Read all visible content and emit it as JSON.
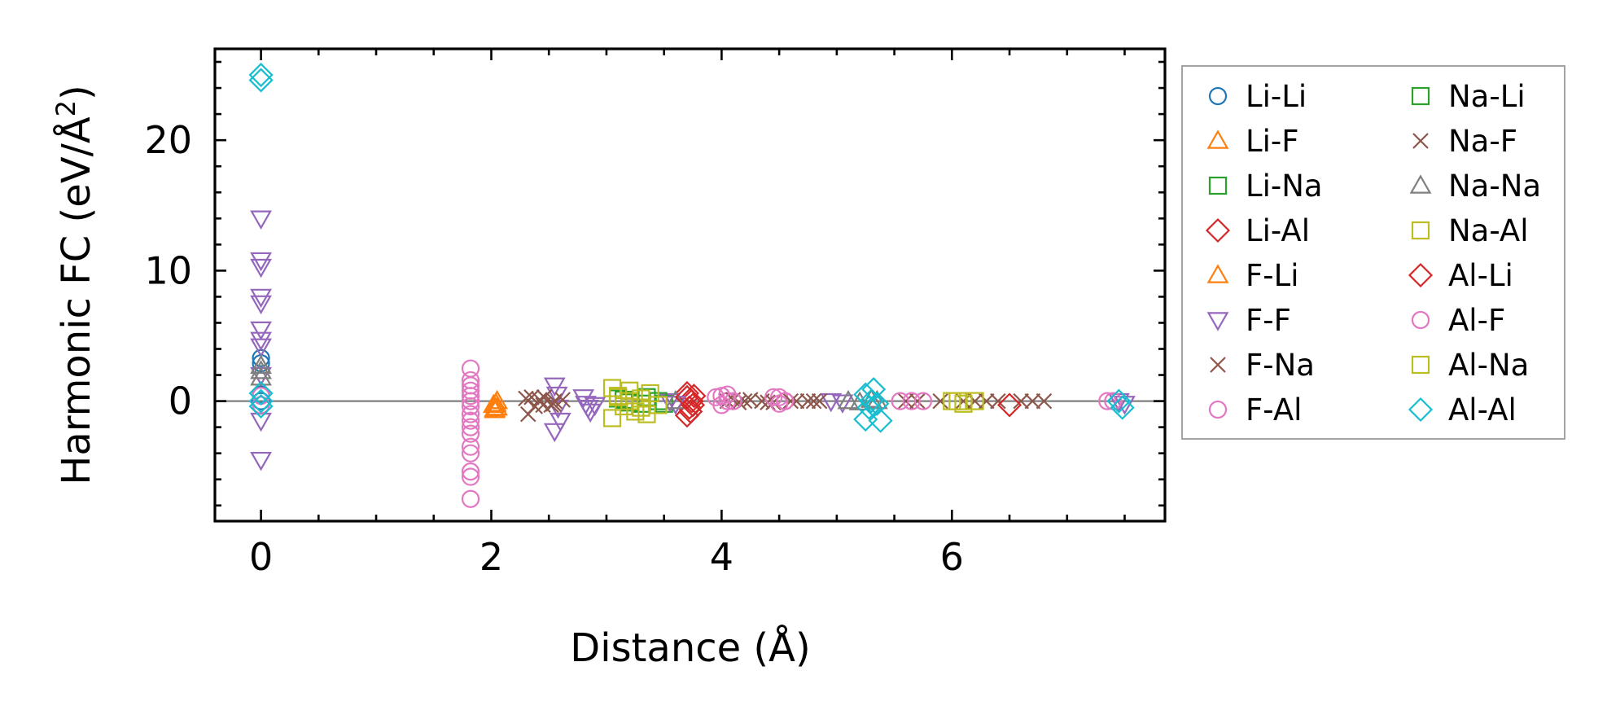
{
  "chart_data": {
    "type": "scatter",
    "title": "",
    "xlabel": "Distance (Å)",
    "ylabel": "Harmonic FC (eV/Å²)",
    "xlim": [
      -0.4,
      7.85
    ],
    "ylim": [
      -9.2,
      27
    ],
    "x_ticks": [
      0,
      2,
      4,
      6
    ],
    "x_tick_labels": [
      "0",
      "2",
      "4",
      "6"
    ],
    "y_ticks": [
      0,
      10,
      20
    ],
    "y_tick_labels": [
      "0",
      "10",
      "20"
    ],
    "grid": false,
    "zero_line": true,
    "legend_position": "outside-right",
    "series": [
      {
        "name": "Li-Li",
        "marker": "circle",
        "color": "#1f77b4",
        "x": [
          0,
          0,
          0,
          0
        ],
        "y": [
          3.3,
          2.9,
          0.5,
          0.0
        ]
      },
      {
        "name": "Li-F",
        "marker": "triangle-up",
        "color": "#ff7f0e",
        "x": [
          2.02,
          2.03,
          2.04,
          2.05
        ],
        "y": [
          -0.3,
          -0.6,
          -0.2,
          -0.5
        ]
      },
      {
        "name": "Li-Na",
        "marker": "square",
        "color": "#2ca02c",
        "x": [
          3.1,
          3.2,
          3.35,
          3.5
        ],
        "y": [
          0.2,
          -0.1,
          0.3,
          -0.2
        ]
      },
      {
        "name": "Li-Al",
        "marker": "diamond",
        "color": "#d62728",
        "x": [
          3.7,
          3.72,
          3.74,
          3.76,
          3.7,
          3.73
        ],
        "y": [
          -1.1,
          -0.5,
          0.0,
          0.4,
          0.6,
          -0.8
        ]
      },
      {
        "name": "F-Li",
        "marker": "triangle-up",
        "color": "#ff7f0e",
        "x": [
          2.03,
          2.05
        ],
        "y": [
          -0.7,
          0.0
        ]
      },
      {
        "name": "F-F",
        "marker": "triangle-down",
        "color": "#9467bd",
        "x": [
          0,
          0,
          0,
          0,
          0,
          0,
          0,
          0,
          0,
          0,
          0,
          2.55,
          2.57,
          2.58,
          2.6,
          2.55,
          2.8,
          2.82,
          2.84,
          2.86,
          2.9,
          3.55,
          3.6,
          4.95,
          5.05,
          7.45,
          7.5
        ],
        "y": [
          14.0,
          10.8,
          10.3,
          8.0,
          7.5,
          5.5,
          4.7,
          4.2,
          2.0,
          -1.5,
          -4.5,
          1.2,
          0.5,
          -0.5,
          -1.5,
          -2.3,
          0.3,
          -0.2,
          -0.5,
          -0.8,
          -0.3,
          0.0,
          -0.2,
          0.0,
          -0.1,
          0.0,
          -0.2
        ]
      },
      {
        "name": "F-Na",
        "marker": "x",
        "color": "#8c564b",
        "x": [
          2.3,
          2.38,
          2.46,
          2.54,
          2.62,
          2.32,
          2.42,
          2.52,
          4.05,
          4.15,
          4.25,
          4.35,
          4.45,
          4.65,
          4.75,
          4.85,
          5.6,
          5.7,
          6.1,
          6.2,
          6.4,
          6.6,
          6.8
        ],
        "y": [
          0.2,
          -0.4,
          0.3,
          -0.2,
          0.1,
          -1.0,
          0.1,
          -0.3,
          0.0,
          -0.1,
          0.1,
          0.0,
          -0.1,
          0.0,
          0.0,
          0.0,
          0.0,
          0.0,
          0.0,
          0.0,
          0.0,
          0.0,
          0.0
        ]
      },
      {
        "name": "F-Al",
        "marker": "circle",
        "color": "#e377c2",
        "x": [
          1.82,
          1.82,
          1.82,
          1.82,
          1.82,
          1.82,
          1.82,
          1.82,
          1.82,
          1.82,
          1.82,
          1.82,
          1.82,
          1.82,
          4.0,
          4.05,
          4.5,
          4.55
        ],
        "y": [
          2.5,
          1.6,
          0.8,
          0.4,
          0.0,
          -0.4,
          -1.0,
          -2.0,
          -2.5,
          -3.5,
          -4.0,
          -5.4,
          -5.8,
          -7.5,
          0.4,
          0.0,
          0.3,
          0.0
        ]
      },
      {
        "name": "Na-Li",
        "marker": "square",
        "color": "#2ca02c",
        "x": [
          3.15,
          3.3,
          3.45
        ],
        "y": [
          0.1,
          -0.2,
          0.0
        ]
      },
      {
        "name": "Na-F",
        "marker": "x",
        "color": "#8c564b",
        "x": [
          2.35,
          2.45,
          2.55,
          4.1,
          4.2,
          4.4,
          4.6,
          4.8,
          5.9,
          6.3,
          6.7
        ],
        "y": [
          0.3,
          -0.3,
          0.0,
          0.1,
          0.0,
          -0.1,
          0.0,
          0.0,
          0.0,
          0.0,
          0.0
        ]
      },
      {
        "name": "Na-Na",
        "marker": "triangle-up",
        "color": "#7f7f7f",
        "x": [
          0,
          0,
          0,
          3.6,
          5.1,
          5.2,
          5.3,
          5.35
        ],
        "y": [
          2.7,
          2.3,
          1.8,
          0.0,
          0.0,
          -0.1,
          0.1,
          0.0
        ]
      },
      {
        "name": "Na-Al",
        "marker": "square",
        "color": "#bcbd22",
        "x": [
          3.05,
          3.1,
          3.15,
          3.2,
          3.25,
          3.3,
          3.38,
          3.45,
          3.05,
          3.2,
          3.35,
          6.0,
          6.1,
          6.2
        ],
        "y": [
          1.0,
          0.4,
          -0.4,
          0.8,
          -0.8,
          0.2,
          0.6,
          -0.3,
          -1.3,
          0.0,
          -1.0,
          0.0,
          -0.2,
          0.0
        ]
      },
      {
        "name": "Al-Li",
        "marker": "diamond",
        "color": "#d62728",
        "x": [
          3.7,
          3.75,
          6.5
        ],
        "y": [
          0.3,
          -0.3,
          -0.3
        ]
      },
      {
        "name": "Al-F",
        "marker": "circle",
        "color": "#e377c2",
        "x": [
          0,
          0,
          1.82,
          1.82,
          3.95,
          4.0,
          4.05,
          4.1,
          4.45,
          4.5,
          4.55,
          5.55,
          5.65,
          5.75,
          7.35,
          7.4
        ],
        "y": [
          0.4,
          -0.3,
          1.2,
          -1.5,
          0.3,
          -0.3,
          0.5,
          0.0,
          0.3,
          -0.2,
          0.0,
          0.0,
          0.0,
          0.0,
          0.0,
          0.0
        ]
      },
      {
        "name": "Al-Na",
        "marker": "square",
        "color": "#bcbd22",
        "x": [
          3.1,
          3.3,
          6.05
        ],
        "y": [
          0.3,
          -0.5,
          0.0
        ]
      },
      {
        "name": "Al-Al",
        "marker": "diamond",
        "color": "#17becf",
        "x": [
          0,
          0,
          0,
          0,
          0,
          5.25,
          5.28,
          5.32,
          5.35,
          5.25,
          5.38,
          5.3,
          7.45,
          7.48
        ],
        "y": [
          25.0,
          24.6,
          0.6,
          0.0,
          -0.4,
          0.5,
          -0.5,
          0.9,
          -0.2,
          -1.4,
          -1.5,
          0.0,
          0.0,
          -0.5
        ]
      }
    ]
  }
}
